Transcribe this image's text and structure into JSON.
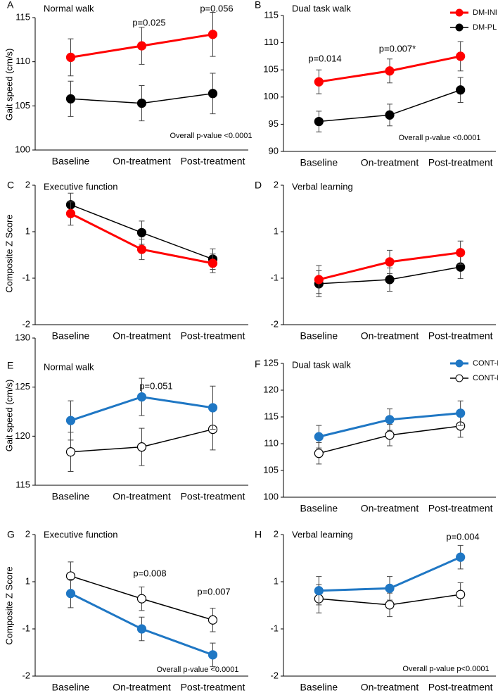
{
  "chart_data": [
    {
      "type": "line",
      "panel": "A",
      "title": "Normal walk",
      "ylabel": "Gait speed (cm/s)",
      "categories": [
        "Baseline",
        "On-treatment",
        "Post-treatment"
      ],
      "ylim": [
        100,
        115
      ],
      "yticks": [
        100,
        105,
        110,
        115
      ],
      "series": [
        {
          "color": "#ff0000",
          "marker_fill": "#ff0000",
          "values": [
            110.5,
            111.8,
            113.1
          ],
          "errors": [
            2.1,
            2.1,
            2.5
          ]
        },
        {
          "color": "#000000",
          "marker_fill": "#000000",
          "values": [
            105.8,
            105.3,
            106.4
          ],
          "errors": [
            2.0,
            2.0,
            2.3
          ]
        }
      ],
      "annotations": [
        "p=0.025",
        "p=0.056",
        "Overall p-value <0.0001"
      ]
    },
    {
      "type": "line",
      "panel": "B",
      "title": "Dual task walk",
      "categories": [
        "Baseline",
        "On-treatment",
        "Post-treatment"
      ],
      "ylim": [
        90,
        115
      ],
      "yticks": [
        90,
        95,
        100,
        105,
        110,
        115
      ],
      "legend": "top-right",
      "series": [
        {
          "name": "DM-INI",
          "color": "#ff0000",
          "marker_fill": "#ff0000",
          "values": [
            102.8,
            104.8,
            107.5
          ],
          "errors": [
            2.2,
            2.2,
            2.7
          ]
        },
        {
          "name": "DM-PL",
          "color": "#000000",
          "marker_fill": "#000000",
          "values": [
            95.5,
            96.7,
            101.3
          ],
          "errors": [
            1.9,
            2.0,
            2.3
          ]
        }
      ],
      "annotations": [
        "p=0.014",
        "p=0.007*",
        "Overall p-value <0.0001"
      ]
    },
    {
      "type": "line",
      "panel": "C",
      "title": "Executive function",
      "ylabel": "Composite Z Score",
      "categories": [
        "Baseline",
        "On-treatment",
        "Post-treatment"
      ],
      "ylim": [
        -1.5,
        1.5
      ],
      "yticks": [
        {
          "value": -1.5,
          "label": "-2"
        },
        {
          "value": -0.5,
          "label": "-1"
        },
        {
          "value": 0.5,
          "label": "1"
        },
        {
          "value": 1.5,
          "label": "2"
        }
      ],
      "series": [
        {
          "color": "#ff0000",
          "marker_fill": "#ff0000",
          "values": [
            0.89,
            0.12,
            -0.18
          ],
          "errors": [
            0.25,
            0.22,
            0.2
          ]
        },
        {
          "color": "#000000",
          "marker_fill": "#000000",
          "values": [
            1.08,
            0.48,
            -0.09
          ],
          "errors": [
            0.25,
            0.25,
            0.22
          ]
        }
      ],
      "annotations": []
    },
    {
      "type": "line",
      "panel": "D",
      "title": "Verbal learning",
      "categories": [
        "Baseline",
        "On-treatment",
        "Post-treatment"
      ],
      "ylim": [
        -1.5,
        1.5
      ],
      "yticks": [
        {
          "value": -1.5,
          "label": "-2"
        },
        {
          "value": -0.5,
          "label": "-1"
        },
        {
          "value": 0.5,
          "label": "1"
        },
        {
          "value": 1.5,
          "label": "2"
        }
      ],
      "series": [
        {
          "color": "#ff0000",
          "marker_fill": "#ff0000",
          "values": [
            -0.53,
            -0.15,
            0.05
          ],
          "errors": [
            0.3,
            0.25,
            0.25
          ]
        },
        {
          "color": "#000000",
          "marker_fill": "#000000",
          "values": [
            -0.62,
            -0.53,
            -0.26
          ],
          "errors": [
            0.28,
            0.25,
            0.25
          ]
        }
      ],
      "annotations": []
    },
    {
      "type": "line",
      "panel": "E",
      "title": "Normal walk",
      "ylabel": "Gait speed (cm/s)",
      "categories": [
        "Baseline",
        "On-treatment",
        "Post-treatment"
      ],
      "ylim": [
        115,
        130
      ],
      "yticks": [
        115,
        120,
        125,
        130
      ],
      "series": [
        {
          "color": "#1f77c4",
          "marker_fill": "#1f77c4",
          "values": [
            121.6,
            124.0,
            122.9
          ],
          "errors": [
            2.0,
            1.9,
            2.2
          ]
        },
        {
          "color": "#000000",
          "marker_fill": "#ffffff",
          "values": [
            118.4,
            118.9,
            120.7
          ],
          "errors": [
            2.0,
            1.9,
            2.1
          ]
        }
      ],
      "annotations": [
        "p=0.051"
      ]
    },
    {
      "type": "line",
      "panel": "F",
      "title": "Dual task walk",
      "categories": [
        "Baseline",
        "On-treatment",
        "Post-treatment"
      ],
      "ylim": [
        100,
        125
      ],
      "yticks": [
        100,
        105,
        110,
        115,
        120,
        125
      ],
      "legend": "top-right",
      "series": [
        {
          "name": "CONT-INI",
          "color": "#1f77c4",
          "marker_fill": "#1f77c4",
          "values": [
            111.3,
            114.5,
            115.7
          ],
          "errors": [
            2.1,
            2.0,
            2.3
          ]
        },
        {
          "name": "CONT-PL",
          "color": "#000000",
          "marker_fill": "#ffffff",
          "values": [
            108.2,
            111.6,
            113.3
          ],
          "errors": [
            2.0,
            2.0,
            2.1
          ]
        }
      ],
      "annotations": []
    },
    {
      "type": "line",
      "panel": "G",
      "title": "Executive function",
      "ylabel": "Composite  Z Score",
      "categories": [
        "Baseline",
        "On-treatment",
        "Post-treatment"
      ],
      "ylim": [
        -1.5,
        1.5
      ],
      "yticks": [
        {
          "value": -1.5,
          "label": "-2"
        },
        {
          "value": -0.5,
          "label": "-1"
        },
        {
          "value": 0.5,
          "label": "1"
        },
        {
          "value": 1.5,
          "label": "2"
        }
      ],
      "series": [
        {
          "color": "#1f77c4",
          "marker_fill": "#1f77c4",
          "values": [
            0.25,
            -0.5,
            -1.05
          ],
          "errors": [
            0.3,
            0.25,
            0.25
          ]
        },
        {
          "color": "#000000",
          "marker_fill": "#ffffff",
          "values": [
            0.62,
            0.14,
            -0.31
          ],
          "errors": [
            0.3,
            0.25,
            0.25
          ]
        }
      ],
      "annotations": [
        "p=0.008",
        "p=0.007",
        "Overall p-value <0.0001"
      ]
    },
    {
      "type": "line",
      "panel": "H",
      "title": "Verbal learning",
      "categories": [
        "Baseline",
        "On-treatment",
        "Post-treatment"
      ],
      "ylim": [
        -1.5,
        1.5
      ],
      "yticks": [
        {
          "value": -1.5,
          "label": "-2"
        },
        {
          "value": -0.5,
          "label": "-1"
        },
        {
          "value": 0.5,
          "label": "1"
        },
        {
          "value": 1.5,
          "label": "2"
        }
      ],
      "series": [
        {
          "color": "#1f77c4",
          "marker_fill": "#1f77c4",
          "values": [
            0.31,
            0.36,
            1.02
          ],
          "errors": [
            0.3,
            0.25,
            0.25
          ]
        },
        {
          "color": "#000000",
          "marker_fill": "#ffffff",
          "values": [
            0.14,
            0.01,
            0.23
          ],
          "errors": [
            0.3,
            0.25,
            0.25
          ]
        }
      ],
      "annotations": [
        "p=0.004",
        "Overall p-value p<0.0001"
      ]
    }
  ]
}
